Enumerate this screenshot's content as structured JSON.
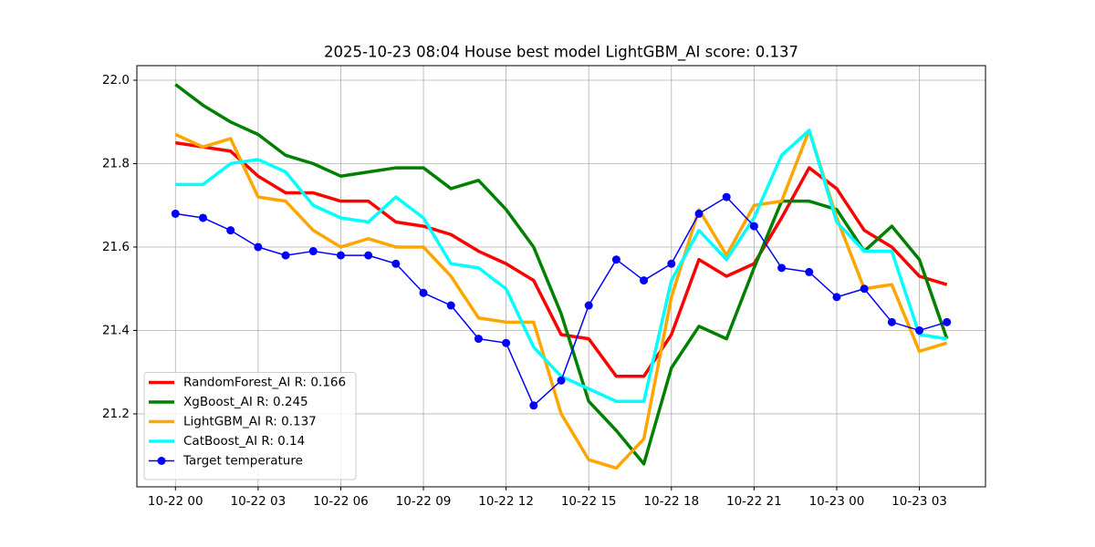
{
  "chart_data": {
    "type": "line",
    "title": "2025-10-23 08:04 House best model LightGBM_AI score: 0.137",
    "x": [
      0,
      1,
      2,
      3,
      4,
      5,
      6,
      7,
      8,
      9,
      10,
      11,
      12,
      13,
      14,
      15,
      16,
      17,
      18,
      19,
      20,
      21,
      22,
      23,
      24,
      25,
      26,
      27,
      28
    ],
    "xlim": [
      -1.4,
      29.4
    ],
    "xticks": [
      {
        "value": 0,
        "label": "10-22 00"
      },
      {
        "value": 3,
        "label": "10-22 03"
      },
      {
        "value": 6,
        "label": "10-22 06"
      },
      {
        "value": 9,
        "label": "10-22 09"
      },
      {
        "value": 12,
        "label": "10-22 12"
      },
      {
        "value": 15,
        "label": "10-22 15"
      },
      {
        "value": 18,
        "label": "10-22 18"
      },
      {
        "value": 21,
        "label": "10-22 21"
      },
      {
        "value": 24,
        "label": "10-23 00"
      },
      {
        "value": 27,
        "label": "10-23 03"
      }
    ],
    "ylim": [
      21.025,
      22.035
    ],
    "yticks": [
      21.2,
      21.4,
      21.6,
      21.8,
      {
        "value": 22.0,
        "label": "22.0"
      }
    ],
    "grid": true,
    "legend": "lower left",
    "series": [
      {
        "name": "RandomForest_AI R: 0.166",
        "color": "#ff0000",
        "values": [
          21.85,
          21.84,
          21.83,
          21.77,
          21.73,
          21.73,
          21.71,
          21.71,
          21.66,
          21.65,
          21.63,
          21.59,
          21.56,
          21.52,
          21.39,
          21.38,
          21.29,
          21.29,
          21.39,
          21.57,
          21.53,
          21.56,
          21.67,
          21.79,
          21.74,
          21.64,
          21.6,
          21.53,
          21.51
        ]
      },
      {
        "name": "XgBoost_AI R: 0.245",
        "color": "#008000",
        "values": [
          21.99,
          21.94,
          21.9,
          21.87,
          21.82,
          21.8,
          21.77,
          21.78,
          21.79,
          21.79,
          21.74,
          21.76,
          21.69,
          21.6,
          21.44,
          21.23,
          21.16,
          21.08,
          21.31,
          21.41,
          21.38,
          21.55,
          21.71,
          21.71,
          21.69,
          21.59,
          21.65,
          21.57,
          21.38
        ]
      },
      {
        "name": "LightGBM_AI R: 0.137",
        "color": "#ffa500",
        "values": [
          21.87,
          21.84,
          21.86,
          21.72,
          21.71,
          21.64,
          21.6,
          21.62,
          21.6,
          21.6,
          21.53,
          21.43,
          21.42,
          21.42,
          21.2,
          21.09,
          21.07,
          21.14,
          21.48,
          21.69,
          21.58,
          21.7,
          21.71,
          21.88,
          21.67,
          21.5,
          21.51,
          21.35,
          21.37
        ]
      },
      {
        "name": "CatBoost_AI R: 0.14",
        "color": "#00ffff",
        "values": [
          21.75,
          21.75,
          21.8,
          21.81,
          21.78,
          21.7,
          21.67,
          21.66,
          21.72,
          21.67,
          21.56,
          21.55,
          21.5,
          21.36,
          21.29,
          21.26,
          21.23,
          21.23,
          21.52,
          21.64,
          21.57,
          21.67,
          21.82,
          21.88,
          21.66,
          21.59,
          21.59,
          21.39,
          21.38
        ]
      },
      {
        "name": "Target temperature",
        "color": "#0000ff",
        "marker": "o",
        "values": [
          21.68,
          21.67,
          21.64,
          21.6,
          21.58,
          21.59,
          21.58,
          21.58,
          21.56,
          21.49,
          21.46,
          21.38,
          21.37,
          21.22,
          21.28,
          21.46,
          21.57,
          21.52,
          21.56,
          21.68,
          21.72,
          21.65,
          21.55,
          21.54,
          21.48,
          21.5,
          21.42,
          21.4,
          21.42
        ]
      }
    ]
  }
}
